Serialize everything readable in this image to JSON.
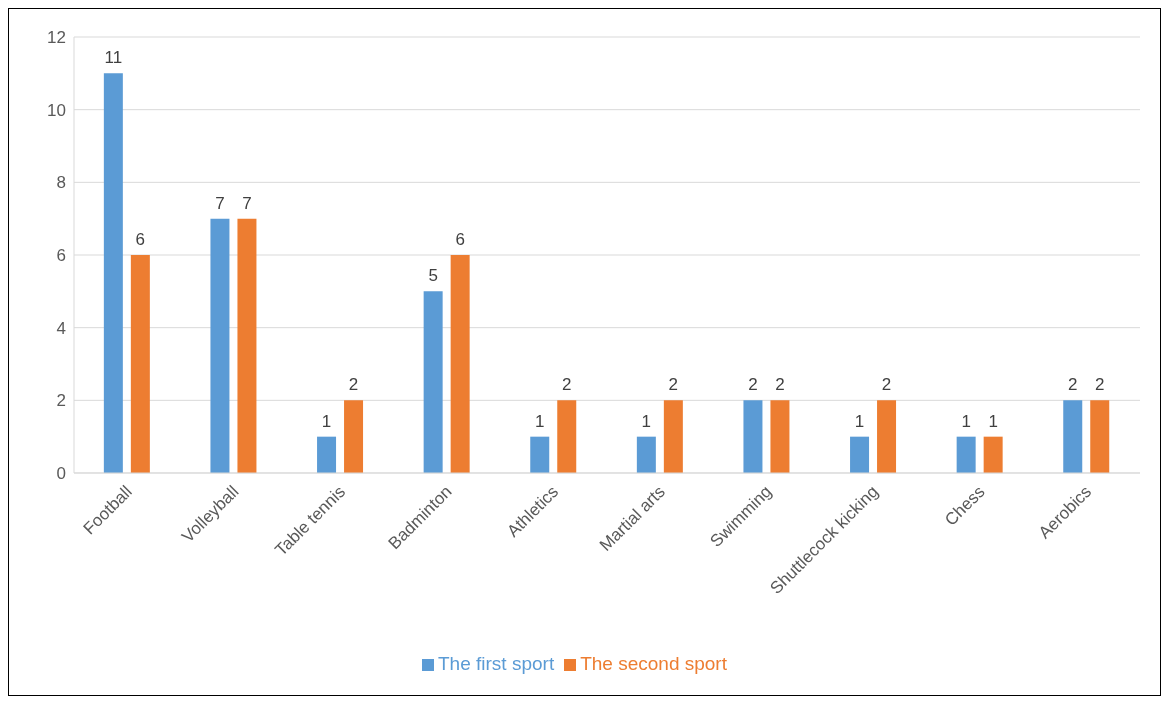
{
  "chart_data": {
    "type": "bar",
    "categories": [
      "Football",
      "Volleyball",
      "Table tennis",
      "Badminton",
      "Athletics",
      "Martial arts",
      "Swimming",
      "Shuttlecock kicking",
      "Chess",
      "Aerobics"
    ],
    "series": [
      {
        "name": "The first sport",
        "color": "#5b9bd5",
        "values": [
          11,
          7,
          1,
          5,
          1,
          1,
          2,
          1,
          1,
          2
        ]
      },
      {
        "name": "The second sport",
        "color": "#ed7d31",
        "values": [
          6,
          7,
          2,
          6,
          2,
          2,
          2,
          2,
          1,
          2
        ]
      }
    ],
    "ylim": [
      0,
      12
    ],
    "yticks": [
      0,
      2,
      4,
      6,
      8,
      10,
      12
    ],
    "grid": "y",
    "legend": "bottom",
    "data_labels": true
  }
}
